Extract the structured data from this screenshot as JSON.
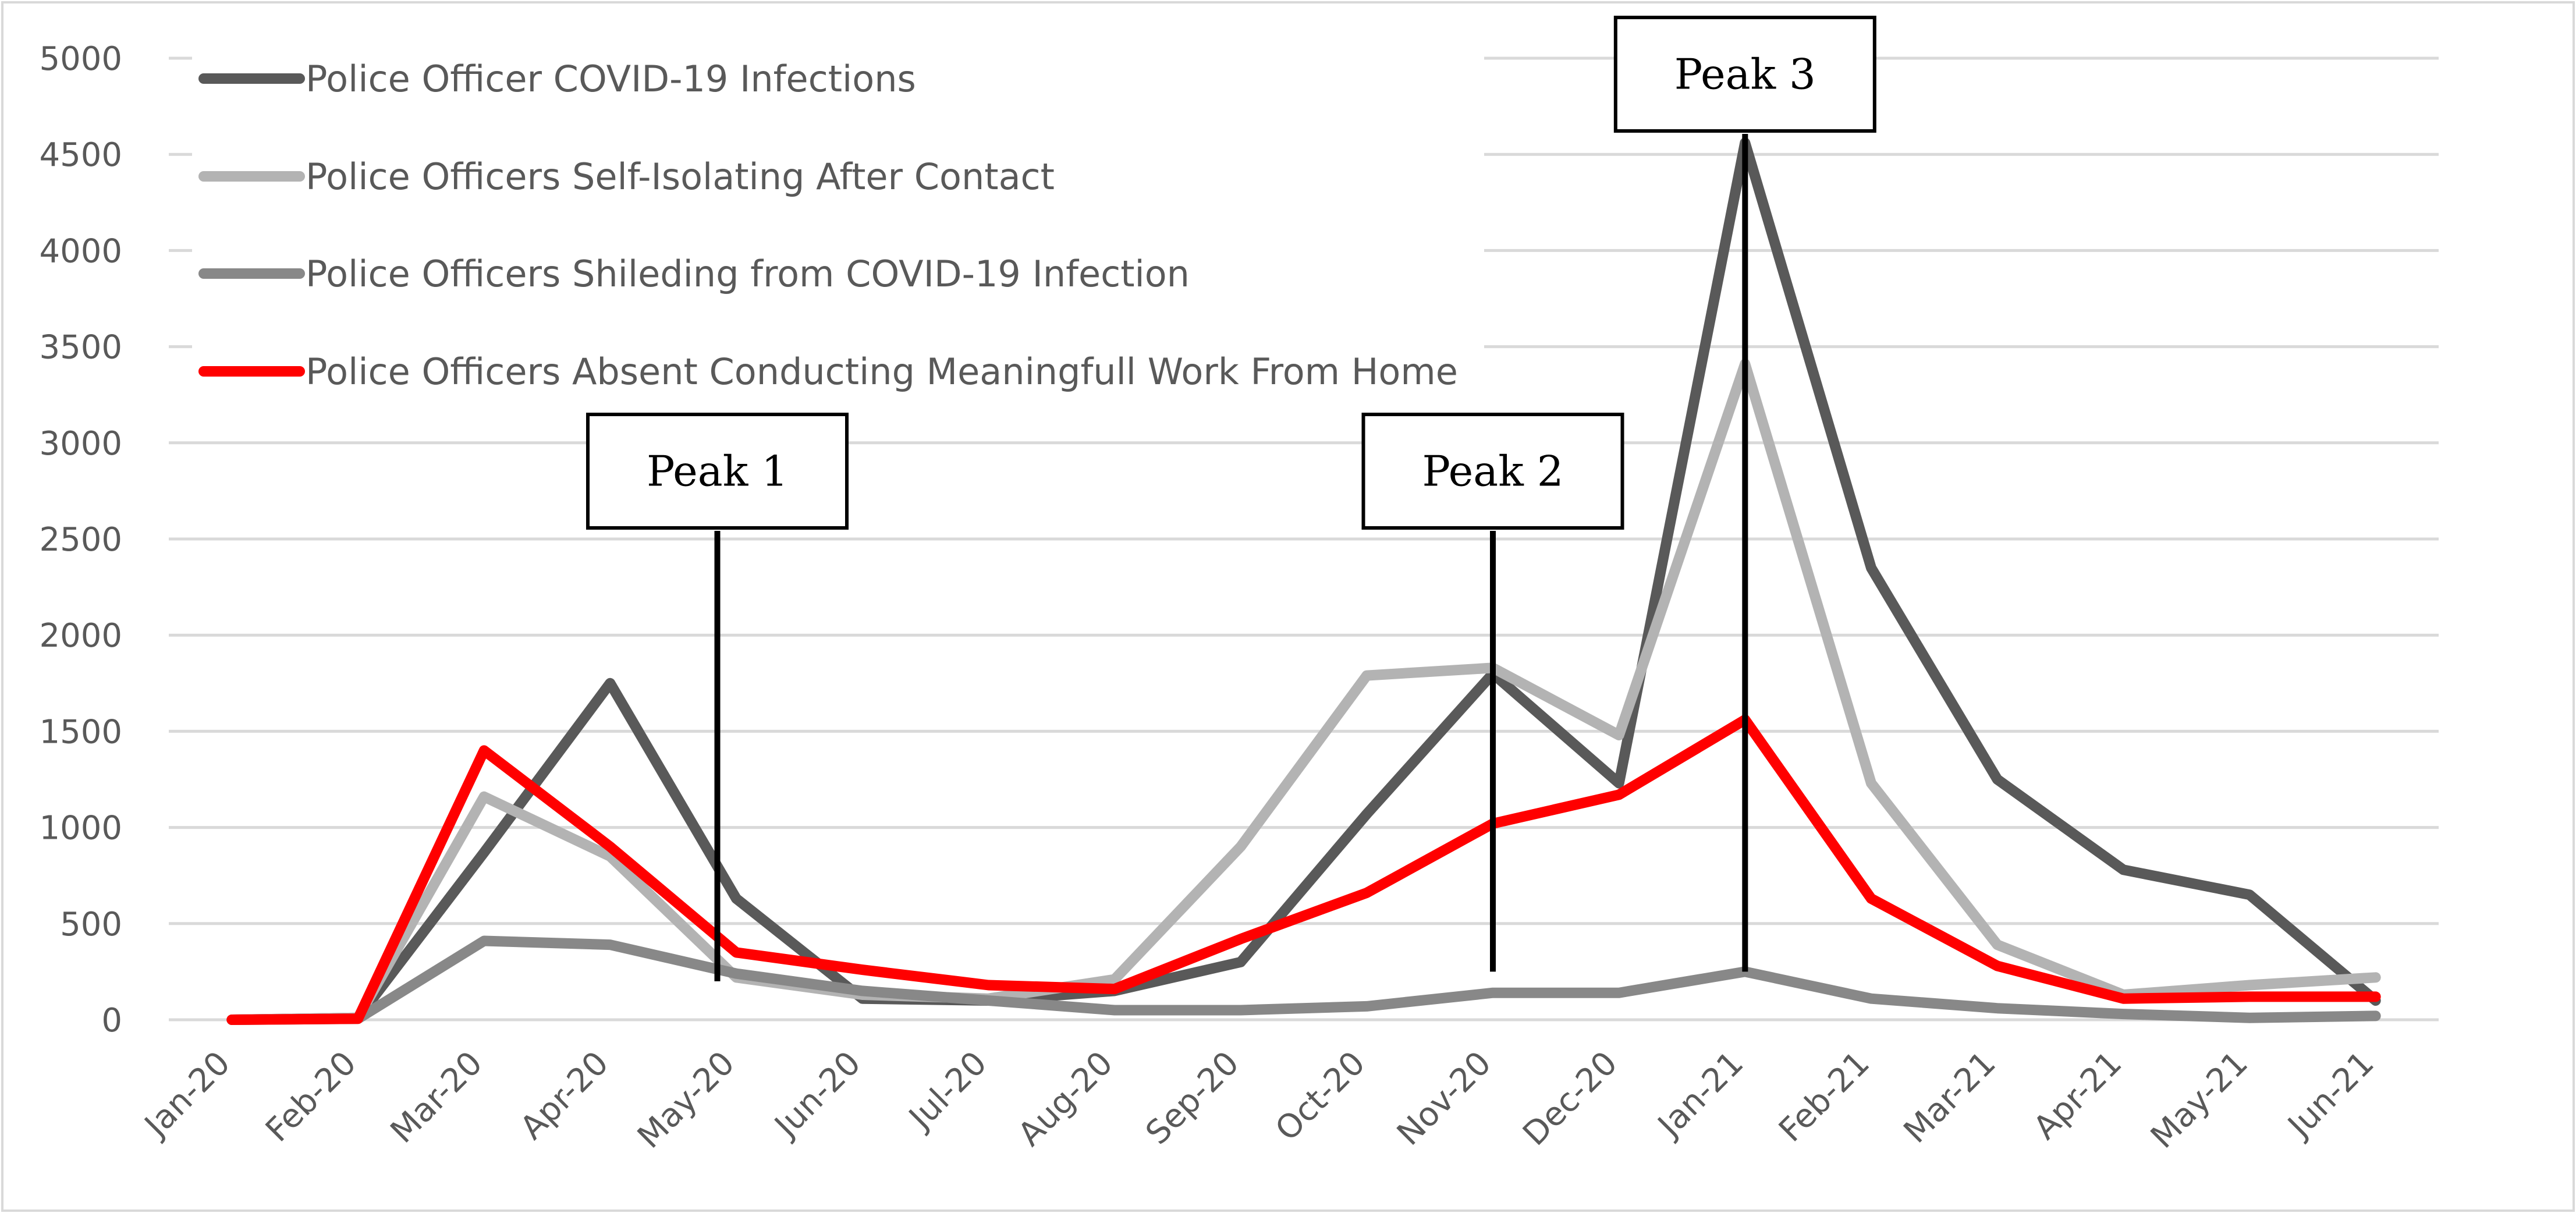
{
  "chart_data": {
    "type": "line",
    "title": "",
    "xlabel": "",
    "ylabel": "",
    "categories": [
      "Jan-20",
      "Feb-20",
      "Mar-20",
      "Apr-20",
      "May-20",
      "Jun-20",
      "Jul-20",
      "Aug-20",
      "Sep-20",
      "Oct-20",
      "Nov-20",
      "Dec-20",
      "Jan-21",
      "Feb-21",
      "Mar-21",
      "Apr-21",
      "May-21",
      "Jun-21"
    ],
    "ylim": [
      0,
      5000
    ],
    "yticks": [
      0,
      500,
      1000,
      1500,
      2000,
      2500,
      3000,
      3500,
      4000,
      4500,
      5000
    ],
    "grid": true,
    "legend_position": "top-left",
    "series": [
      {
        "name": "Police Officer COVID-19 Infections",
        "color": "#595959",
        "values": [
          0,
          10,
          870,
          1750,
          630,
          110,
          100,
          150,
          300,
          1070,
          1800,
          1230,
          4560,
          2350,
          1250,
          780,
          650,
          100
        ]
      },
      {
        "name": "Police Officers Self-Isolating After Contact",
        "color": "#b3b3b3",
        "values": [
          0,
          10,
          1160,
          850,
          220,
          130,
          110,
          210,
          900,
          1790,
          1830,
          1480,
          3410,
          1230,
          390,
          130,
          180,
          220
        ]
      },
      {
        "name": "Police Officers Shileding from COVID-19 Infection",
        "color": "#888888",
        "values": [
          0,
          5,
          410,
          390,
          240,
          150,
          100,
          50,
          50,
          70,
          140,
          140,
          250,
          110,
          60,
          30,
          10,
          20
        ]
      },
      {
        "name": "Police Officers Absent Conducting Meaningfull Work From Home",
        "color": "#ff0000",
        "values": [
          0,
          5,
          1400,
          900,
          350,
          260,
          180,
          160,
          420,
          660,
          1020,
          1170,
          1560,
          630,
          280,
          110,
          120,
          120
        ]
      }
    ],
    "annotations": [
      {
        "label": "Peak 1",
        "x": 3.85,
        "y_top": 2550,
        "y_bottom": 200
      },
      {
        "label": "Peak 2",
        "x": 10.0,
        "y_top": 2550,
        "y_bottom": 250
      },
      {
        "label": "Peak 3",
        "x": 12.0,
        "y_top": 4560,
        "y_bottom": 250
      }
    ]
  }
}
